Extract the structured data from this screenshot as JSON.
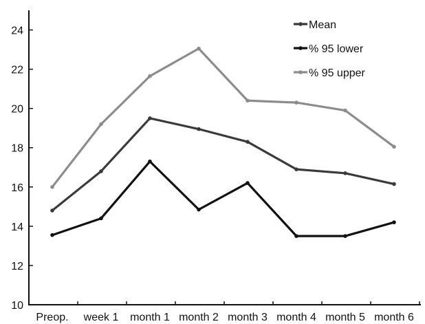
{
  "chart_data": {
    "type": "line",
    "categories": [
      "Preop.",
      "week 1",
      "month 1",
      "month 2",
      "month 3",
      "month 4",
      "month 5",
      "month 6"
    ],
    "series": [
      {
        "name": "Mean",
        "color": "#3a3a3a",
        "values": [
          14.8,
          16.8,
          19.5,
          18.95,
          18.3,
          16.9,
          16.7,
          16.15
        ]
      },
      {
        "name": "% 95 lower",
        "color": "#111111",
        "values": [
          13.55,
          14.4,
          17.3,
          14.85,
          16.2,
          13.5,
          13.5,
          14.2
        ]
      },
      {
        "name": "% 95 upper",
        "color": "#8c8c8c",
        "values": [
          16.0,
          19.2,
          21.65,
          23.05,
          20.4,
          20.3,
          19.9,
          18.05
        ]
      }
    ],
    "ylim": [
      10,
      25
    ],
    "yticks": [
      "10",
      "12",
      "14",
      "16",
      "18",
      "20",
      "22",
      "24"
    ],
    "title": "",
    "xlabel": "",
    "ylabel": "",
    "grid": false,
    "legend_position": "top-right"
  }
}
